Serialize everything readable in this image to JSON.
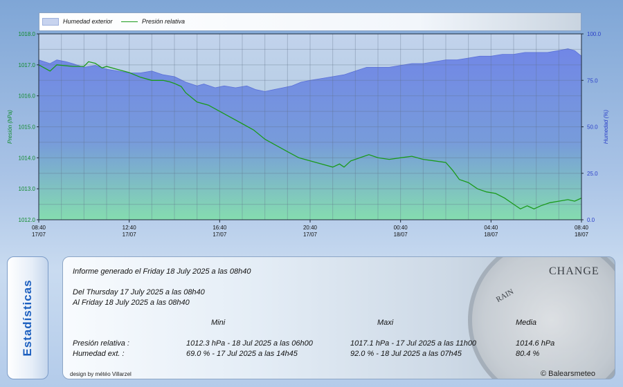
{
  "colors": {
    "pressure": "#1a9a1a",
    "humidity_fill": "#6f86e6",
    "left_axis": "#0f8a2a",
    "right_axis": "#2a3ec8"
  },
  "chart_data": {
    "type": "line",
    "legend": {
      "placement": "top",
      "entries": [
        {
          "label": "Humedad exterior",
          "style": "area"
        },
        {
          "label": "Presión relativa",
          "style": "line"
        }
      ]
    },
    "y_left": {
      "label": "Presión (hPa)",
      "range": [
        1012.0,
        1018.0
      ],
      "ticks": [
        "1012.0",
        "1013.0",
        "1014.0",
        "1015.0",
        "1016.0",
        "1017.0",
        "1018.0"
      ]
    },
    "y_right": {
      "label": "Humedad (%)",
      "range": [
        0,
        100
      ],
      "ticks": [
        "0.0",
        "25.0",
        "50.0",
        "75.0",
        "100.0"
      ]
    },
    "x_ticks": [
      {
        "time": "08:40",
        "date": "17/07"
      },
      {
        "time": "12:40",
        "date": "17/07"
      },
      {
        "time": "16:40",
        "date": "17/07"
      },
      {
        "time": "20:40",
        "date": "17/07"
      },
      {
        "time": "00:40",
        "date": "18/07"
      },
      {
        "time": "04:40",
        "date": "18/07"
      },
      {
        "time": "08:40",
        "date": "18/07"
      }
    ],
    "x_range_hours": [
      0,
      24
    ],
    "grid": true,
    "series": [
      {
        "name": "Presión relativa",
        "axis": "left",
        "points": [
          [
            0,
            1017.0
          ],
          [
            0.5,
            1016.8
          ],
          [
            0.8,
            1017.0
          ],
          [
            1.5,
            1016.95
          ],
          [
            2.0,
            1016.95
          ],
          [
            2.2,
            1017.1
          ],
          [
            2.5,
            1017.05
          ],
          [
            2.8,
            1016.9
          ],
          [
            3.0,
            1016.95
          ],
          [
            3.5,
            1016.85
          ],
          [
            4.0,
            1016.75
          ],
          [
            4.5,
            1016.6
          ],
          [
            5.0,
            1016.5
          ],
          [
            5.5,
            1016.5
          ],
          [
            5.8,
            1016.45
          ],
          [
            6.0,
            1016.4
          ],
          [
            6.3,
            1016.3
          ],
          [
            6.5,
            1016.1
          ],
          [
            7.0,
            1015.8
          ],
          [
            7.5,
            1015.7
          ],
          [
            8.0,
            1015.5
          ],
          [
            8.5,
            1015.3
          ],
          [
            9.0,
            1015.1
          ],
          [
            9.5,
            1014.9
          ],
          [
            10.0,
            1014.6
          ],
          [
            10.5,
            1014.4
          ],
          [
            11.0,
            1014.2
          ],
          [
            11.5,
            1014.0
          ],
          [
            12.0,
            1013.9
          ],
          [
            12.5,
            1013.8
          ],
          [
            13.0,
            1013.7
          ],
          [
            13.3,
            1013.8
          ],
          [
            13.5,
            1013.7
          ],
          [
            13.8,
            1013.9
          ],
          [
            14.2,
            1014.0
          ],
          [
            14.6,
            1014.1
          ],
          [
            15.0,
            1014.0
          ],
          [
            15.5,
            1013.95
          ],
          [
            16.0,
            1014.0
          ],
          [
            16.5,
            1014.05
          ],
          [
            17.0,
            1013.95
          ],
          [
            17.5,
            1013.9
          ],
          [
            18.0,
            1013.85
          ],
          [
            18.3,
            1013.6
          ],
          [
            18.6,
            1013.3
          ],
          [
            19.0,
            1013.2
          ],
          [
            19.4,
            1013.0
          ],
          [
            19.8,
            1012.9
          ],
          [
            20.2,
            1012.85
          ],
          [
            20.6,
            1012.7
          ],
          [
            21.0,
            1012.5
          ],
          [
            21.3,
            1012.35
          ],
          [
            21.6,
            1012.45
          ],
          [
            21.9,
            1012.35
          ],
          [
            22.2,
            1012.45
          ],
          [
            22.6,
            1012.55
          ],
          [
            23.0,
            1012.6
          ],
          [
            23.4,
            1012.65
          ],
          [
            23.7,
            1012.6
          ],
          [
            24.0,
            1012.7
          ]
        ]
      },
      {
        "name": "Humedad exterior",
        "axis": "right",
        "points": [
          [
            0,
            86
          ],
          [
            0.5,
            84
          ],
          [
            0.8,
            86
          ],
          [
            1.2,
            85
          ],
          [
            1.5,
            84
          ],
          [
            2.0,
            82
          ],
          [
            2.5,
            83
          ],
          [
            3.0,
            81
          ],
          [
            3.5,
            80
          ],
          [
            4.0,
            79
          ],
          [
            4.5,
            79
          ],
          [
            5.0,
            80
          ],
          [
            5.5,
            78
          ],
          [
            6.0,
            77
          ],
          [
            6.5,
            74
          ],
          [
            7.0,
            72
          ],
          [
            7.3,
            73
          ],
          [
            7.8,
            71
          ],
          [
            8.2,
            72
          ],
          [
            8.7,
            71
          ],
          [
            9.2,
            72
          ],
          [
            9.6,
            70
          ],
          [
            10.0,
            69
          ],
          [
            10.4,
            70
          ],
          [
            10.8,
            71
          ],
          [
            11.2,
            72
          ],
          [
            11.6,
            74
          ],
          [
            12.0,
            75
          ],
          [
            12.5,
            76
          ],
          [
            13.0,
            77
          ],
          [
            13.5,
            78
          ],
          [
            14.0,
            80
          ],
          [
            14.5,
            82
          ],
          [
            15.0,
            82
          ],
          [
            15.5,
            82
          ],
          [
            16.0,
            83
          ],
          [
            16.5,
            84
          ],
          [
            17.0,
            84
          ],
          [
            17.5,
            85
          ],
          [
            18.0,
            86
          ],
          [
            18.5,
            86
          ],
          [
            19.0,
            87
          ],
          [
            19.5,
            88
          ],
          [
            20.0,
            88
          ],
          [
            20.5,
            89
          ],
          [
            21.0,
            89
          ],
          [
            21.5,
            90
          ],
          [
            22.0,
            90
          ],
          [
            22.5,
            90
          ],
          [
            23.0,
            91
          ],
          [
            23.4,
            92
          ],
          [
            23.7,
            91
          ],
          [
            24.0,
            88
          ]
        ]
      }
    ]
  },
  "stats": {
    "side_title": "Estadísticas",
    "report_line": "Informe generado el Friday 18 July 2025 a las 08h40",
    "from_line": "Del Thursday 17 July 2025 a las 08h40",
    "to_line": "Al Friday 18 July 2025 a las 08h40",
    "col_min": "Mini",
    "col_max": "Maxi",
    "col_avg": "Media",
    "rows": [
      {
        "label": "Presión relativa :",
        "min": "1012.3 hPa - 18 Jul 2025 a las 06h00",
        "max": "1017.1 hPa - 17 Jul 2025 a las 11h00",
        "avg": "1014.6 hPa"
      },
      {
        "label": "Humedad ext. :",
        "min": "69.0 % - 17 Jul 2025 a las 14h45",
        "max": "92.0 % - 18 Jul 2025 a las 07h45",
        "avg": "80.4 %"
      }
    ],
    "credit_left": "design by météo Villarzel",
    "credit_right": "© Balearsmeteo",
    "gauge_words": [
      "CHANGE",
      "RAIN"
    ]
  }
}
